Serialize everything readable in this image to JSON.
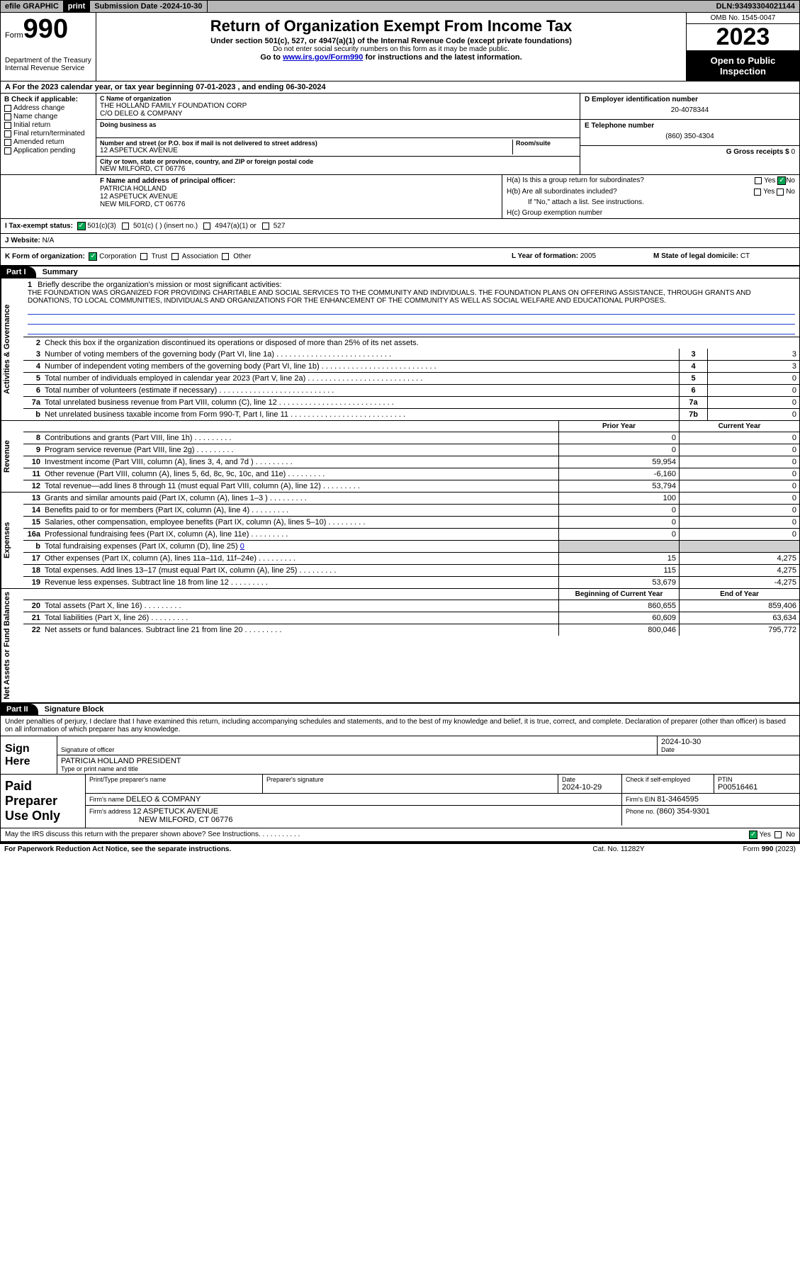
{
  "topbar": {
    "efile": "efile GRAPHIC",
    "print": "print",
    "sub_date_lbl": "Submission Date - ",
    "sub_date": "2024-10-30",
    "dln_lbl": "DLN: ",
    "dln": "93493304021144"
  },
  "header": {
    "form_word": "Form",
    "form_no": "990",
    "dept": "Department of the Treasury",
    "irs": "Internal Revenue Service",
    "title": "Return of Organization Exempt From Income Tax",
    "sub1": "Under section 501(c), 527, or 4947(a)(1) of the Internal Revenue Code (except private foundations)",
    "sub2": "Do not enter social security numbers on this form as it may be made public.",
    "sub3_pre": "Go to ",
    "sub3_link": "www.irs.gov/Form990",
    "sub3_post": " for instructions and the latest information.",
    "omb": "OMB No. 1545-0047",
    "year": "2023",
    "open": "Open to Public Inspection"
  },
  "rowA": {
    "label": "A",
    "text": " For the 2023 calendar year, or tax year beginning ",
    "begin": "07-01-2023",
    "mid": "  , and ending ",
    "end": "06-30-2024"
  },
  "colB": {
    "title": "B Check if applicable:",
    "opts": [
      "Address change",
      "Name change",
      "Initial return",
      "Final return/terminated",
      "Amended return",
      "Application pending"
    ]
  },
  "colC": {
    "name_lbl": "C Name of organization",
    "name": "THE HOLLAND FAMILY FOUNDATION CORP",
    "co": "C/O DELEO & COMPANY",
    "dba_lbl": "Doing business as",
    "addr_lbl": "Number and street (or P.O. box if mail is not delivered to street address)",
    "room_lbl": "Room/suite",
    "addr": "12 ASPETUCK AVENUE",
    "city_lbl": "City or town, state or province, country, and ZIP or foreign postal code",
    "city": "NEW MILFORD, CT  06776"
  },
  "colDE": {
    "d_lbl": "D Employer identification number",
    "ein": "20-4078344",
    "e_lbl": "E Telephone number",
    "phone": "(860) 350-4304",
    "g_lbl": "G Gross receipts $ ",
    "g_val": "0"
  },
  "rowF": {
    "lbl": "F Name and address of principal officer:",
    "name": "PATRICIA HOLLAND",
    "addr": "12 ASPETUCK AVENUE",
    "city": "NEW MILFORD, CT  06776"
  },
  "rowH": {
    "ha": "H(a)  Is this a group return for subordinates?",
    "hb": "H(b)  Are all subordinates included?",
    "hb2": "If \"No,\" attach a list. See instructions.",
    "hc": "H(c)  Group exemption number ",
    "yes": "Yes",
    "no": "No"
  },
  "rowI": {
    "lbl": "I   Tax-exempt status:",
    "o1": "501(c)(3)",
    "o2": "501(c) (  ) (insert no.)",
    "o3": "4947(a)(1) or",
    "o4": "527"
  },
  "rowJ": {
    "lbl": "J   Website: ",
    "val": "N/A"
  },
  "rowK": {
    "lbl": "K Form of organization:",
    "o1": "Corporation",
    "o2": "Trust",
    "o3": "Association",
    "o4": "Other"
  },
  "rowL": {
    "lbl": "L Year of formation: ",
    "val": "2005"
  },
  "rowM": {
    "lbl": "M State of legal domicile: ",
    "val": "CT"
  },
  "part1": {
    "hdr": "Part I",
    "title": "Summary"
  },
  "part2": {
    "hdr": "Part II",
    "title": "Signature Block"
  },
  "sideLabels": {
    "gov": "Activities & Governance",
    "rev": "Revenue",
    "exp": "Expenses",
    "net": "Net Assets or Fund Balances"
  },
  "mission": {
    "q": "Briefly describe the organization's mission or most significant activities:",
    "text": "THE FOUNDATION WAS ORGANIZED FOR PROVIDING CHARITABLE AND SOCIAL SERVICES TO THE COMMUNITY AND INDIVIDUALS. THE FOUNDATION PLANS ON OFFERING ASSISTANCE, THROUGH GRANTS AND DONATIONS, TO LOCAL COMMUNITIES, INDIVIDUALS AND ORGANIZATIONS FOR THE ENHANCEMENT OF THE COMMUNITY AS WELL AS SOCIAL WELFARE AND EDUCATIONAL PURPOSES."
  },
  "govItems": {
    "l2": "Check this box      if the organization discontinued its operations or disposed of more than 25% of its net assets.",
    "l3": {
      "d": "Number of voting members of the governing body (Part VI, line 1a)",
      "b": "3",
      "v": "3"
    },
    "l4": {
      "d": "Number of independent voting members of the governing body (Part VI, line 1b)",
      "b": "4",
      "v": "3"
    },
    "l5": {
      "d": "Total number of individuals employed in calendar year 2023 (Part V, line 2a)",
      "b": "5",
      "v": "0"
    },
    "l6": {
      "d": "Total number of volunteers (estimate if necessary)",
      "b": "6",
      "v": "0"
    },
    "l7a": {
      "d": "Total unrelated business revenue from Part VIII, column (C), line 12",
      "b": "7a",
      "v": "0"
    },
    "l7b": {
      "d": "Net unrelated business taxable income from Form 990-T, Part I, line 11",
      "b": "7b",
      "v": "0"
    }
  },
  "revHdr": {
    "prior": "Prior Year",
    "current": "Current Year"
  },
  "revItems": [
    {
      "n": "8",
      "d": "Contributions and grants (Part VIII, line 1h)",
      "p": "0",
      "c": "0"
    },
    {
      "n": "9",
      "d": "Program service revenue (Part VIII, line 2g)",
      "p": "0",
      "c": "0"
    },
    {
      "n": "10",
      "d": "Investment income (Part VIII, column (A), lines 3, 4, and 7d )",
      "p": "59,954",
      "c": "0"
    },
    {
      "n": "11",
      "d": "Other revenue (Part VIII, column (A), lines 5, 6d, 8c, 9c, 10c, and 11e)",
      "p": "-6,160",
      "c": "0"
    },
    {
      "n": "12",
      "d": "Total revenue—add lines 8 through 11 (must equal Part VIII, column (A), line 12)",
      "p": "53,794",
      "c": "0"
    }
  ],
  "expItems": [
    {
      "n": "13",
      "d": "Grants and similar amounts paid (Part IX, column (A), lines 1–3 )",
      "p": "100",
      "c": "0"
    },
    {
      "n": "14",
      "d": "Benefits paid to or for members (Part IX, column (A), line 4)",
      "p": "0",
      "c": "0"
    },
    {
      "n": "15",
      "d": "Salaries, other compensation, employee benefits (Part IX, column (A), lines 5–10)",
      "p": "0",
      "c": "0"
    },
    {
      "n": "16a",
      "d": "Professional fundraising fees (Part IX, column (A), line 11e)",
      "p": "0",
      "c": "0"
    }
  ],
  "exp16b": {
    "n": "b",
    "d_pre": "Total fundraising expenses (Part IX, column (D), line 25) ",
    "d_val": "0"
  },
  "expItems2": [
    {
      "n": "17",
      "d": "Other expenses (Part IX, column (A), lines 11a–11d, 11f–24e)",
      "p": "15",
      "c": "4,275"
    },
    {
      "n": "18",
      "d": "Total expenses. Add lines 13–17 (must equal Part IX, column (A), line 25)",
      "p": "115",
      "c": "4,275"
    },
    {
      "n": "19",
      "d": "Revenue less expenses. Subtract line 18 from line 12",
      "p": "53,679",
      "c": "-4,275"
    }
  ],
  "netHdr": {
    "begin": "Beginning of Current Year",
    "end": "End of Year"
  },
  "netItems": [
    {
      "n": "20",
      "d": "Total assets (Part X, line 16)",
      "p": "860,655",
      "c": "859,406"
    },
    {
      "n": "21",
      "d": "Total liabilities (Part X, line 26)",
      "p": "60,609",
      "c": "63,634"
    },
    {
      "n": "22",
      "d": "Net assets or fund balances. Subtract line 21 from line 20",
      "p": "800,046",
      "c": "795,772"
    }
  ],
  "perjury": "Under penalties of perjury, I declare that I have examined this return, including accompanying schedules and statements, and to the best of my knowledge and belief, it is true, correct, and complete. Declaration of preparer (other than officer) is based on all information of which preparer has any knowledge.",
  "sign": {
    "lbl": "Sign Here",
    "sig_lbl": "Signature of officer",
    "date_lbl": "Date",
    "date": "2024-10-30",
    "name": "PATRICIA HOLLAND  PRESIDENT",
    "type_lbl": "Type or print name and title"
  },
  "preparer": {
    "lbl": "Paid Preparer Use Only",
    "pt_lbl": "Print/Type preparer's name",
    "ps_lbl": "Preparer's signature",
    "date_lbl": "Date",
    "date": "2024-10-29",
    "check_lbl": "Check       if self-employed",
    "ptin_lbl": "PTIN",
    "ptin": "P00516461",
    "firm_name_lbl": "Firm's name   ",
    "firm_name": "DELEO & COMPANY",
    "firm_ein_lbl": "Firm's EIN  ",
    "firm_ein": "81-3464595",
    "firm_addr_lbl": "Firm's address ",
    "firm_addr1": "12 ASPETUCK AVENUE",
    "firm_addr2": "NEW MILFORD, CT  06776",
    "phone_lbl": "Phone no. ",
    "phone": "(860) 354-9301"
  },
  "discuss": {
    "q": "May the IRS discuss this return with the preparer shown above? See Instructions.",
    "yes": "Yes",
    "no": "No"
  },
  "footer": {
    "left": "For Paperwork Reduction Act Notice, see the separate instructions.",
    "mid": "Cat. No. 11282Y",
    "right_pre": "Form ",
    "right_bold": "990",
    "right_post": " (2023)"
  }
}
